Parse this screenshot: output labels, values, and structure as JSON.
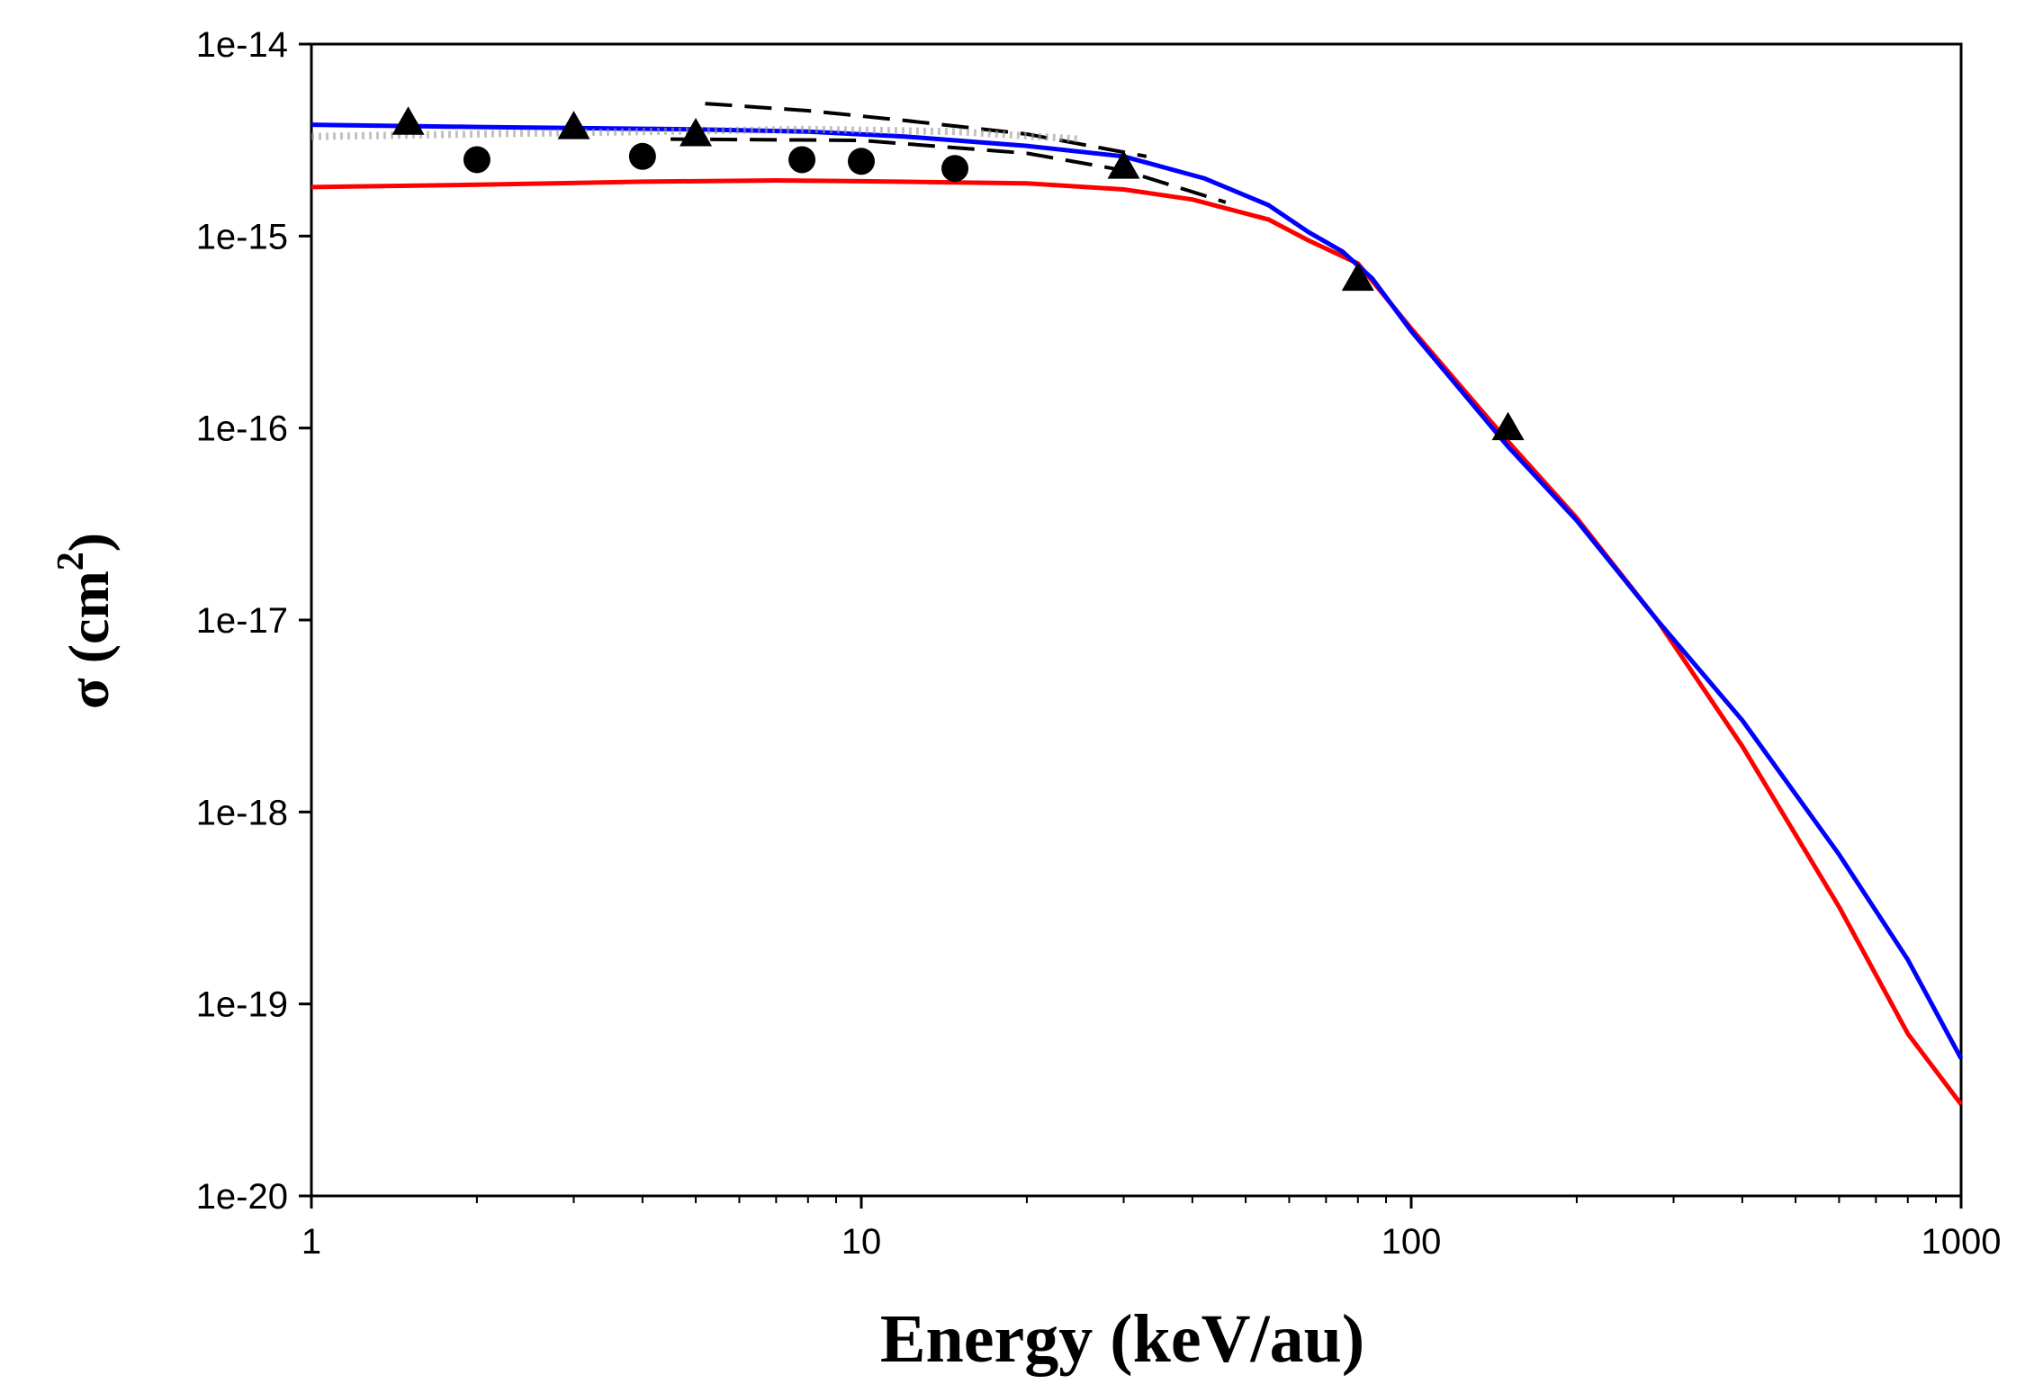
{
  "chart_data": {
    "type": "line",
    "title": "",
    "xlabel": "Energy (keV/au)",
    "ylabel": {
      "main": "σ (cm",
      "sup": "2",
      "close": ")"
    },
    "xscale": "log",
    "yscale": "log",
    "xlim": [
      1,
      1000
    ],
    "ylim": [
      1e-20,
      1e-14
    ],
    "grid": false,
    "x_ticks": [
      1,
      10,
      100,
      1000
    ],
    "x_tick_labels": [
      "1",
      "10",
      "100",
      "1000"
    ],
    "y_ticks": [
      1e-14,
      1e-15,
      1e-16,
      1e-17,
      1e-18,
      1e-19,
      1e-20
    ],
    "y_tick_labels": [
      "1e-14",
      "1e-15",
      "1e-16",
      "1e-17",
      "1e-18",
      "1e-19",
      "1e-20"
    ],
    "series": [
      {
        "name": "red-curve",
        "style": "solid",
        "color": "#ff0000",
        "x": [
          1,
          2,
          4,
          7,
          10,
          20,
          30,
          40,
          55,
          65,
          80,
          100,
          150,
          200,
          280,
          400,
          600,
          800,
          1000
        ],
        "y": [
          1.8e-15,
          1.85e-15,
          1.92e-15,
          1.95e-15,
          1.93e-15,
          1.88e-15,
          1.75e-15,
          1.55e-15,
          1.22e-15,
          9.5e-16,
          7.2e-16,
          3.3e-16,
          8.5e-17,
          3.4e-17,
          1e-17,
          2.2e-18,
          3.2e-19,
          7e-20,
          3e-20
        ]
      },
      {
        "name": "blue-curve",
        "style": "solid",
        "color": "#0000ff",
        "x": [
          1,
          2,
          5,
          8,
          12,
          20,
          30,
          42,
          55,
          65,
          75,
          85,
          100,
          150,
          200,
          280,
          400,
          600,
          800,
          1000
        ],
        "y": [
          3.8e-15,
          3.7e-15,
          3.6e-15,
          3.5e-15,
          3.3e-15,
          2.95e-15,
          2.6e-15,
          2e-15,
          1.45e-15,
          1.05e-15,
          8.3e-16,
          6e-16,
          3.2e-16,
          8e-17,
          3.3e-17,
          1e-17,
          3e-18,
          6e-19,
          1.7e-19,
          5.2e-20
        ]
      },
      {
        "name": "dashed-upper",
        "style": "dashed",
        "color": "#000000",
        "x": [
          5.2,
          8,
          12,
          20,
          33
        ],
        "y": [
          4.9e-15,
          4.5e-15,
          4e-15,
          3.4e-15,
          2.6e-15
        ]
      },
      {
        "name": "dashed-lower",
        "style": "dashed",
        "color": "#000000",
        "x": [
          4.5,
          10,
          20,
          30,
          46
        ],
        "y": [
          3.2e-15,
          3.15e-15,
          2.7e-15,
          2.2e-15,
          1.5e-15
        ]
      },
      {
        "name": "dotted-band",
        "style": "dotted",
        "color": "#999999",
        "x": [
          1,
          2,
          4,
          8,
          15,
          25
        ],
        "y": [
          3.3e-15,
          3.4e-15,
          3.5e-15,
          3.6e-15,
          3.5e-15,
          3.2e-15
        ]
      },
      {
        "name": "triangles",
        "style": "marker",
        "marker": "triangle",
        "color": "#000000",
        "x": [
          1.5,
          3,
          5,
          30,
          80,
          150
        ],
        "y": [
          3.9e-15,
          3.7e-15,
          3.4e-15,
          2.3e-15,
          6e-16,
          1e-16
        ]
      },
      {
        "name": "circles",
        "style": "marker",
        "marker": "circle",
        "color": "#000000",
        "x": [
          2,
          4,
          7.8,
          10,
          14.8
        ],
        "y": [
          2.5e-15,
          2.6e-15,
          2.5e-15,
          2.45e-15,
          2.25e-15
        ]
      }
    ]
  }
}
